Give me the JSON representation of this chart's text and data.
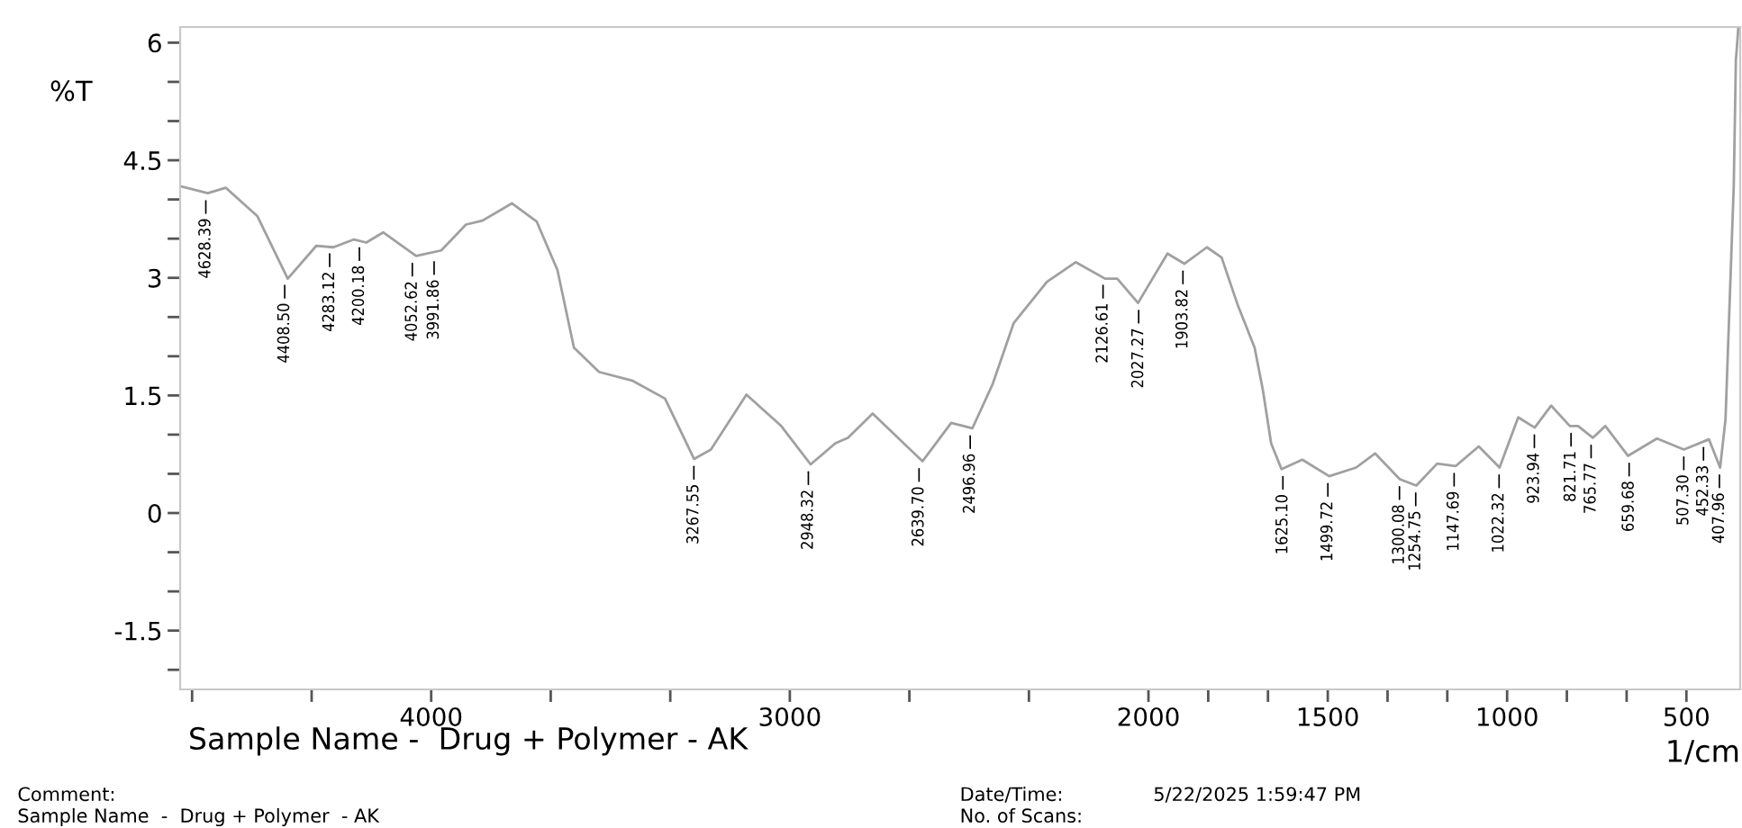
{
  "chart_data": {
    "type": "line",
    "xlabel": "1/cm",
    "ylabel": "%T",
    "x": [
      4700,
      4623,
      4573,
      4485,
      4400,
      4320,
      4273,
      4215,
      4181,
      4134,
      4042,
      3972,
      3903,
      3857,
      3775,
      3706,
      3648,
      3602,
      3532,
      3440,
      3348,
      3267,
      3220,
      3121,
      3024,
      2942,
      2873,
      2838,
      2769,
      2630,
      2550,
      2491,
      2434,
      2376,
      2283,
      2203,
      2121,
      2087,
      2029,
      1947,
      1900,
      1837,
      1796,
      1750,
      1704,
      1681,
      1658,
      1629,
      1571,
      1496,
      1421,
      1368,
      1299,
      1253,
      1195,
      1143,
      1079,
      1021,
      969,
      923,
      877,
      825,
      802,
      761,
      726,
      663,
      582,
      507,
      437,
      406,
      391,
      368,
      362,
      355
    ],
    "series": [
      {
        "color": "#a0a0a0",
        "values": [
          4.17,
          4.08,
          4.15,
          3.79,
          2.99,
          3.41,
          3.39,
          3.49,
          3.45,
          3.58,
          3.28,
          3.35,
          3.68,
          3.73,
          3.95,
          3.72,
          3.1,
          2.11,
          1.8,
          1.69,
          1.46,
          0.69,
          0.81,
          1.51,
          1.11,
          0.62,
          0.89,
          0.96,
          1.27,
          0.66,
          1.15,
          1.08,
          1.65,
          2.42,
          2.95,
          3.2,
          2.99,
          2.99,
          2.68,
          3.31,
          3.18,
          3.39,
          3.26,
          2.64,
          2.11,
          1.57,
          0.89,
          0.56,
          0.68,
          0.47,
          0.58,
          0.76,
          0.43,
          0.35,
          0.63,
          0.6,
          0.85,
          0.58,
          1.22,
          1.09,
          1.37,
          1.11,
          1.11,
          0.96,
          1.11,
          0.73,
          0.95,
          0.81,
          0.94,
          0.58,
          1.19,
          4.17,
          5.78,
          6.2
        ]
      }
    ],
    "xlim": [
      4700,
      350
    ],
    "ylim": [
      -2.25,
      6.2
    ],
    "xticks": [
      {
        "value": 4666.67,
        "label": null
      },
      {
        "value": 4333.33,
        "label": null
      },
      4000,
      {
        "value": 3666.67,
        "label": null
      },
      {
        "value": 3333.33,
        "label": null
      },
      3000,
      {
        "value": 2666.67,
        "label": null
      },
      {
        "value": 2333.33,
        "label": null
      },
      2000,
      {
        "value": 1833.33,
        "label": null
      },
      {
        "value": 1666.67,
        "label": null
      },
      1500,
      {
        "value": 1333.33,
        "label": null
      },
      {
        "value": 1166.67,
        "label": null
      },
      1000,
      {
        "value": 833.33,
        "label": null
      },
      {
        "value": 666.67,
        "label": null
      },
      500
    ],
    "yticks": [
      6,
      {
        "value": 5.5,
        "label": null
      },
      {
        "value": 5,
        "label": null
      },
      4.5,
      {
        "value": 4,
        "label": null
      },
      {
        "value": 3.5,
        "label": null
      },
      3,
      {
        "value": 2.5,
        "label": null
      },
      {
        "value": 2,
        "label": null
      },
      1.5,
      {
        "value": 1,
        "label": null
      },
      {
        "value": 0.5,
        "label": null
      },
      0,
      {
        "value": -0.5,
        "label": null
      },
      {
        "value": -1,
        "label": null
      },
      -1.5,
      {
        "value": -2,
        "label": null
      }
    ],
    "grid": false,
    "legend": false,
    "marker": "none",
    "line_style": "solid",
    "annotations": [
      {
        "text": "4628.39",
        "x": 4628.39,
        "y": 4.08
      },
      {
        "text": "4408.50",
        "x": 4408.5,
        "y": 3.0
      },
      {
        "text": "4283.12",
        "x": 4283.12,
        "y": 3.4
      },
      {
        "text": "4200.18",
        "x": 4200.18,
        "y": 3.48
      },
      {
        "text": "4052.62",
        "x": 4052.62,
        "y": 3.28
      },
      {
        "text": "3991.86",
        "x": 3991.86,
        "y": 3.3
      },
      {
        "text": "3267.55",
        "x": 3267.55,
        "y": 0.69
      },
      {
        "text": "2948.32",
        "x": 2948.32,
        "y": 0.62
      },
      {
        "text": "2639.70",
        "x": 2639.7,
        "y": 0.66
      },
      {
        "text": "2496.96",
        "x": 2496.96,
        "y": 1.08
      },
      {
        "text": "2126.61",
        "x": 2126.61,
        "y": 3.0
      },
      {
        "text": "2027.27",
        "x": 2027.27,
        "y": 2.68
      },
      {
        "text": "1903.82",
        "x": 1903.82,
        "y": 3.18
      },
      {
        "text": "1625.10",
        "x": 1625.1,
        "y": 0.56
      },
      {
        "text": "1499.72",
        "x": 1499.72,
        "y": 0.47
      },
      {
        "text": "1300.08",
        "x": 1300.08,
        "y": 0.43
      },
      {
        "text": "1254.75",
        "x": 1254.75,
        "y": 0.35
      },
      {
        "text": "1147.69",
        "x": 1147.69,
        "y": 0.6
      },
      {
        "text": "1022.32",
        "x": 1022.32,
        "y": 0.58
      },
      {
        "text": "923.94",
        "x": 923.94,
        "y": 1.09
      },
      {
        "text": "821.71",
        "x": 821.71,
        "y": 1.11
      },
      {
        "text": "765.77",
        "x": 765.77,
        "y": 0.96
      },
      {
        "text": "659.68",
        "x": 659.68,
        "y": 0.73
      },
      {
        "text": "507.30",
        "x": 507.3,
        "y": 0.81
      },
      {
        "text": "452.33",
        "x": 452.33,
        "y": 0.93
      },
      {
        "text": "407.96",
        "x": 407.96,
        "y": 0.58
      },
      "Sample Name -  Drug + Polymer - AK",
      "Comment:",
      "Sample Name  -  Drug + Polymer  - AK",
      "Date/Time:",
      "5/22/2025 1:59:47 PM",
      "No. of Scans:"
    ]
  }
}
